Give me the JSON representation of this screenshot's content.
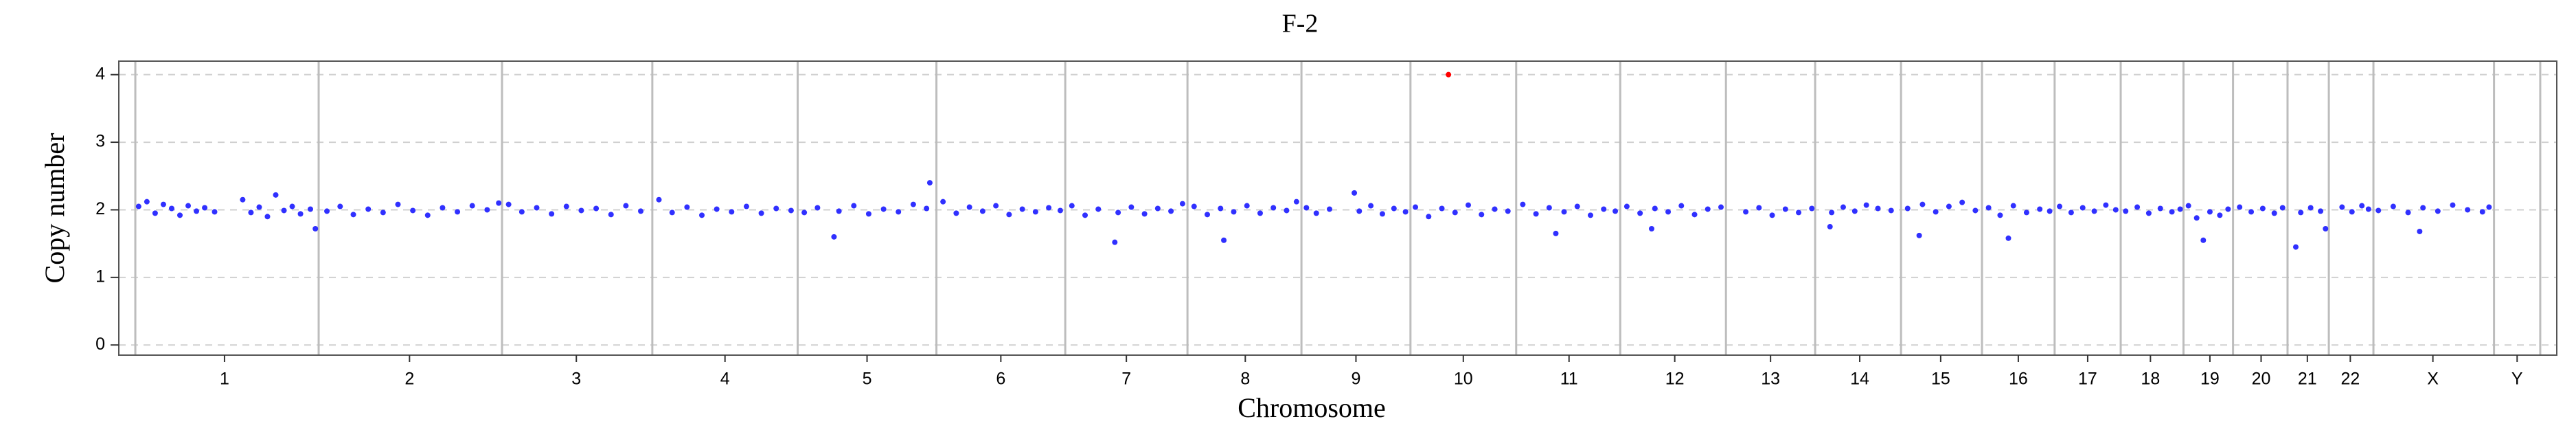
{
  "chart_data": {
    "type": "scatter",
    "title": "F-2",
    "x_label": "Chromosome",
    "y_label": "Copy number",
    "xlim": [
      -20,
      2932
    ],
    "ylim": [
      -0.15,
      4.2
    ],
    "yticks": [
      0,
      1,
      2,
      3,
      4
    ],
    "grid": true,
    "xticks": [
      {
        "value": 108,
        "label": "1"
      },
      {
        "value": 332,
        "label": "2"
      },
      {
        "value": 534,
        "label": "3"
      },
      {
        "value": 714,
        "label": "4"
      },
      {
        "value": 886,
        "label": "5"
      },
      {
        "value": 1048,
        "label": "6"
      },
      {
        "value": 1200,
        "label": "7"
      },
      {
        "value": 1344,
        "label": "8"
      },
      {
        "value": 1478,
        "label": "9"
      },
      {
        "value": 1608,
        "label": "10"
      },
      {
        "value": 1736,
        "label": "11"
      },
      {
        "value": 1864,
        "label": "12"
      },
      {
        "value": 1980,
        "label": "13"
      },
      {
        "value": 2088,
        "label": "14"
      },
      {
        "value": 2186,
        "label": "15"
      },
      {
        "value": 2280,
        "label": "16"
      },
      {
        "value": 2364,
        "label": "17"
      },
      {
        "value": 2440,
        "label": "18"
      },
      {
        "value": 2512,
        "label": "19"
      },
      {
        "value": 2574,
        "label": "20"
      },
      {
        "value": 2630,
        "label": "21"
      },
      {
        "value": 2682,
        "label": "22"
      },
      {
        "value": 2782,
        "label": "X"
      },
      {
        "value": 2884,
        "label": "Y"
      }
    ],
    "chromosome_bounds": [
      0,
      222,
      444,
      626,
      802,
      970,
      1126,
      1274,
      1412,
      1544,
      1672,
      1798,
      1926,
      2034,
      2138,
      2236,
      2324,
      2404,
      2480,
      2540,
      2606,
      2656,
      2710,
      2856,
      2912
    ],
    "series": [
      {
        "color": "#3030ff",
        "x": [
          4,
          14,
          24,
          34,
          44,
          54,
          64,
          74,
          84,
          96,
          130,
          140,
          150,
          160,
          170,
          180,
          190,
          200,
          212,
          218,
          232,
          248,
          264,
          282,
          300,
          318,
          336,
          354,
          372,
          390,
          408,
          426,
          440,
          452,
          468,
          486,
          504,
          522,
          540,
          558,
          576,
          594,
          612,
          634,
          650,
          668,
          686,
          704,
          722,
          740,
          758,
          776,
          794,
          810,
          826,
          846,
          852,
          870,
          888,
          906,
          924,
          942,
          958,
          962,
          978,
          994,
          1010,
          1026,
          1042,
          1058,
          1074,
          1090,
          1106,
          1120,
          1134,
          1150,
          1166,
          1186,
          1190,
          1206,
          1222,
          1238,
          1254,
          1268,
          1282,
          1298,
          1314,
          1318,
          1330,
          1346,
          1362,
          1378,
          1394,
          1406,
          1418,
          1430,
          1446,
          1476,
          1482,
          1496,
          1510,
          1524,
          1538,
          1550,
          1566,
          1582,
          1598,
          1614,
          1630,
          1646,
          1662,
          1680,
          1696,
          1712,
          1720,
          1730,
          1746,
          1762,
          1778,
          1792,
          1806,
          1822,
          1836,
          1840,
          1856,
          1872,
          1888,
          1904,
          1920,
          1950,
          1966,
          1982,
          1998,
          2014,
          2030,
          2052,
          2054,
          2068,
          2082,
          2096,
          2110,
          2126,
          2146,
          2160,
          2164,
          2180,
          2196,
          2212,
          2228,
          2244,
          2258,
          2268,
          2274,
          2290,
          2306,
          2318,
          2330,
          2344,
          2358,
          2372,
          2386,
          2398,
          2410,
          2424,
          2438,
          2452,
          2466,
          2476,
          2486,
          2496,
          2504,
          2512,
          2524,
          2534,
          2548,
          2562,
          2576,
          2590,
          2600,
          2616,
          2622,
          2634,
          2646,
          2652,
          2672,
          2684,
          2696,
          2704,
          2716,
          2734,
          2752,
          2766,
          2770,
          2788,
          2806,
          2824,
          2842,
          2850
        ],
        "values": [
          2.05,
          2.12,
          1.95,
          2.08,
          2.02,
          1.92,
          2.06,
          1.98,
          2.03,
          1.97,
          2.15,
          1.96,
          2.04,
          1.9,
          2.22,
          1.99,
          2.05,
          1.94,
          2.01,
          1.72,
          1.98,
          2.05,
          1.93,
          2.01,
          1.96,
          2.08,
          1.99,
          1.92,
          2.03,
          1.97,
          2.06,
          2.0,
          2.1,
          2.08,
          1.97,
          2.03,
          1.94,
          2.05,
          1.99,
          2.02,
          1.93,
          2.06,
          1.98,
          2.15,
          1.96,
          2.04,
          1.92,
          2.01,
          1.97,
          2.05,
          1.95,
          2.02,
          1.99,
          1.96,
          2.03,
          1.6,
          1.98,
          2.06,
          1.94,
          2.01,
          1.97,
          2.08,
          2.02,
          2.4,
          2.12,
          1.95,
          2.04,
          1.98,
          2.06,
          1.93,
          2.01,
          1.97,
          2.03,
          1.99,
          2.06,
          1.92,
          2.01,
          1.52,
          1.96,
          2.04,
          1.94,
          2.02,
          1.98,
          2.09,
          2.05,
          1.93,
          2.02,
          1.55,
          1.97,
          2.06,
          1.95,
          2.03,
          1.99,
          2.12,
          2.03,
          1.95,
          2.01,
          2.25,
          1.98,
          2.06,
          1.94,
          2.02,
          1.97,
          2.04,
          1.9,
          2.02,
          1.96,
          2.07,
          1.93,
          2.01,
          1.98,
          2.08,
          1.94,
          2.03,
          1.65,
          1.97,
          2.05,
          1.92,
          2.01,
          1.98,
          2.05,
          1.95,
          1.72,
          2.02,
          1.97,
          2.06,
          1.93,
          2.01,
          2.04,
          1.97,
          2.03,
          1.92,
          2.01,
          1.96,
          2.02,
          1.75,
          1.96,
          2.04,
          1.98,
          2.07,
          2.02,
          1.99,
          2.02,
          1.62,
          2.08,
          1.97,
          2.05,
          2.11,
          1.99,
          2.03,
          1.92,
          1.58,
          2.06,
          1.96,
          2.01,
          1.98,
          2.05,
          1.96,
          2.03,
          1.98,
          2.07,
          2.0,
          1.98,
          2.04,
          1.95,
          2.02,
          1.97,
          2.01,
          2.06,
          1.88,
          1.55,
          1.97,
          1.92,
          2.01,
          2.04,
          1.97,
          2.02,
          1.95,
          2.03,
          1.45,
          1.96,
          2.03,
          1.98,
          1.72,
          2.04,
          1.97,
          2.06,
          2.01,
          1.99,
          2.05,
          1.96,
          1.68,
          2.03,
          1.98,
          2.07,
          2.0,
          1.97,
          2.04
        ]
      },
      {
        "color": "#ff0000",
        "x": [
          1590
        ],
        "values": [
          4
        ]
      }
    ]
  }
}
